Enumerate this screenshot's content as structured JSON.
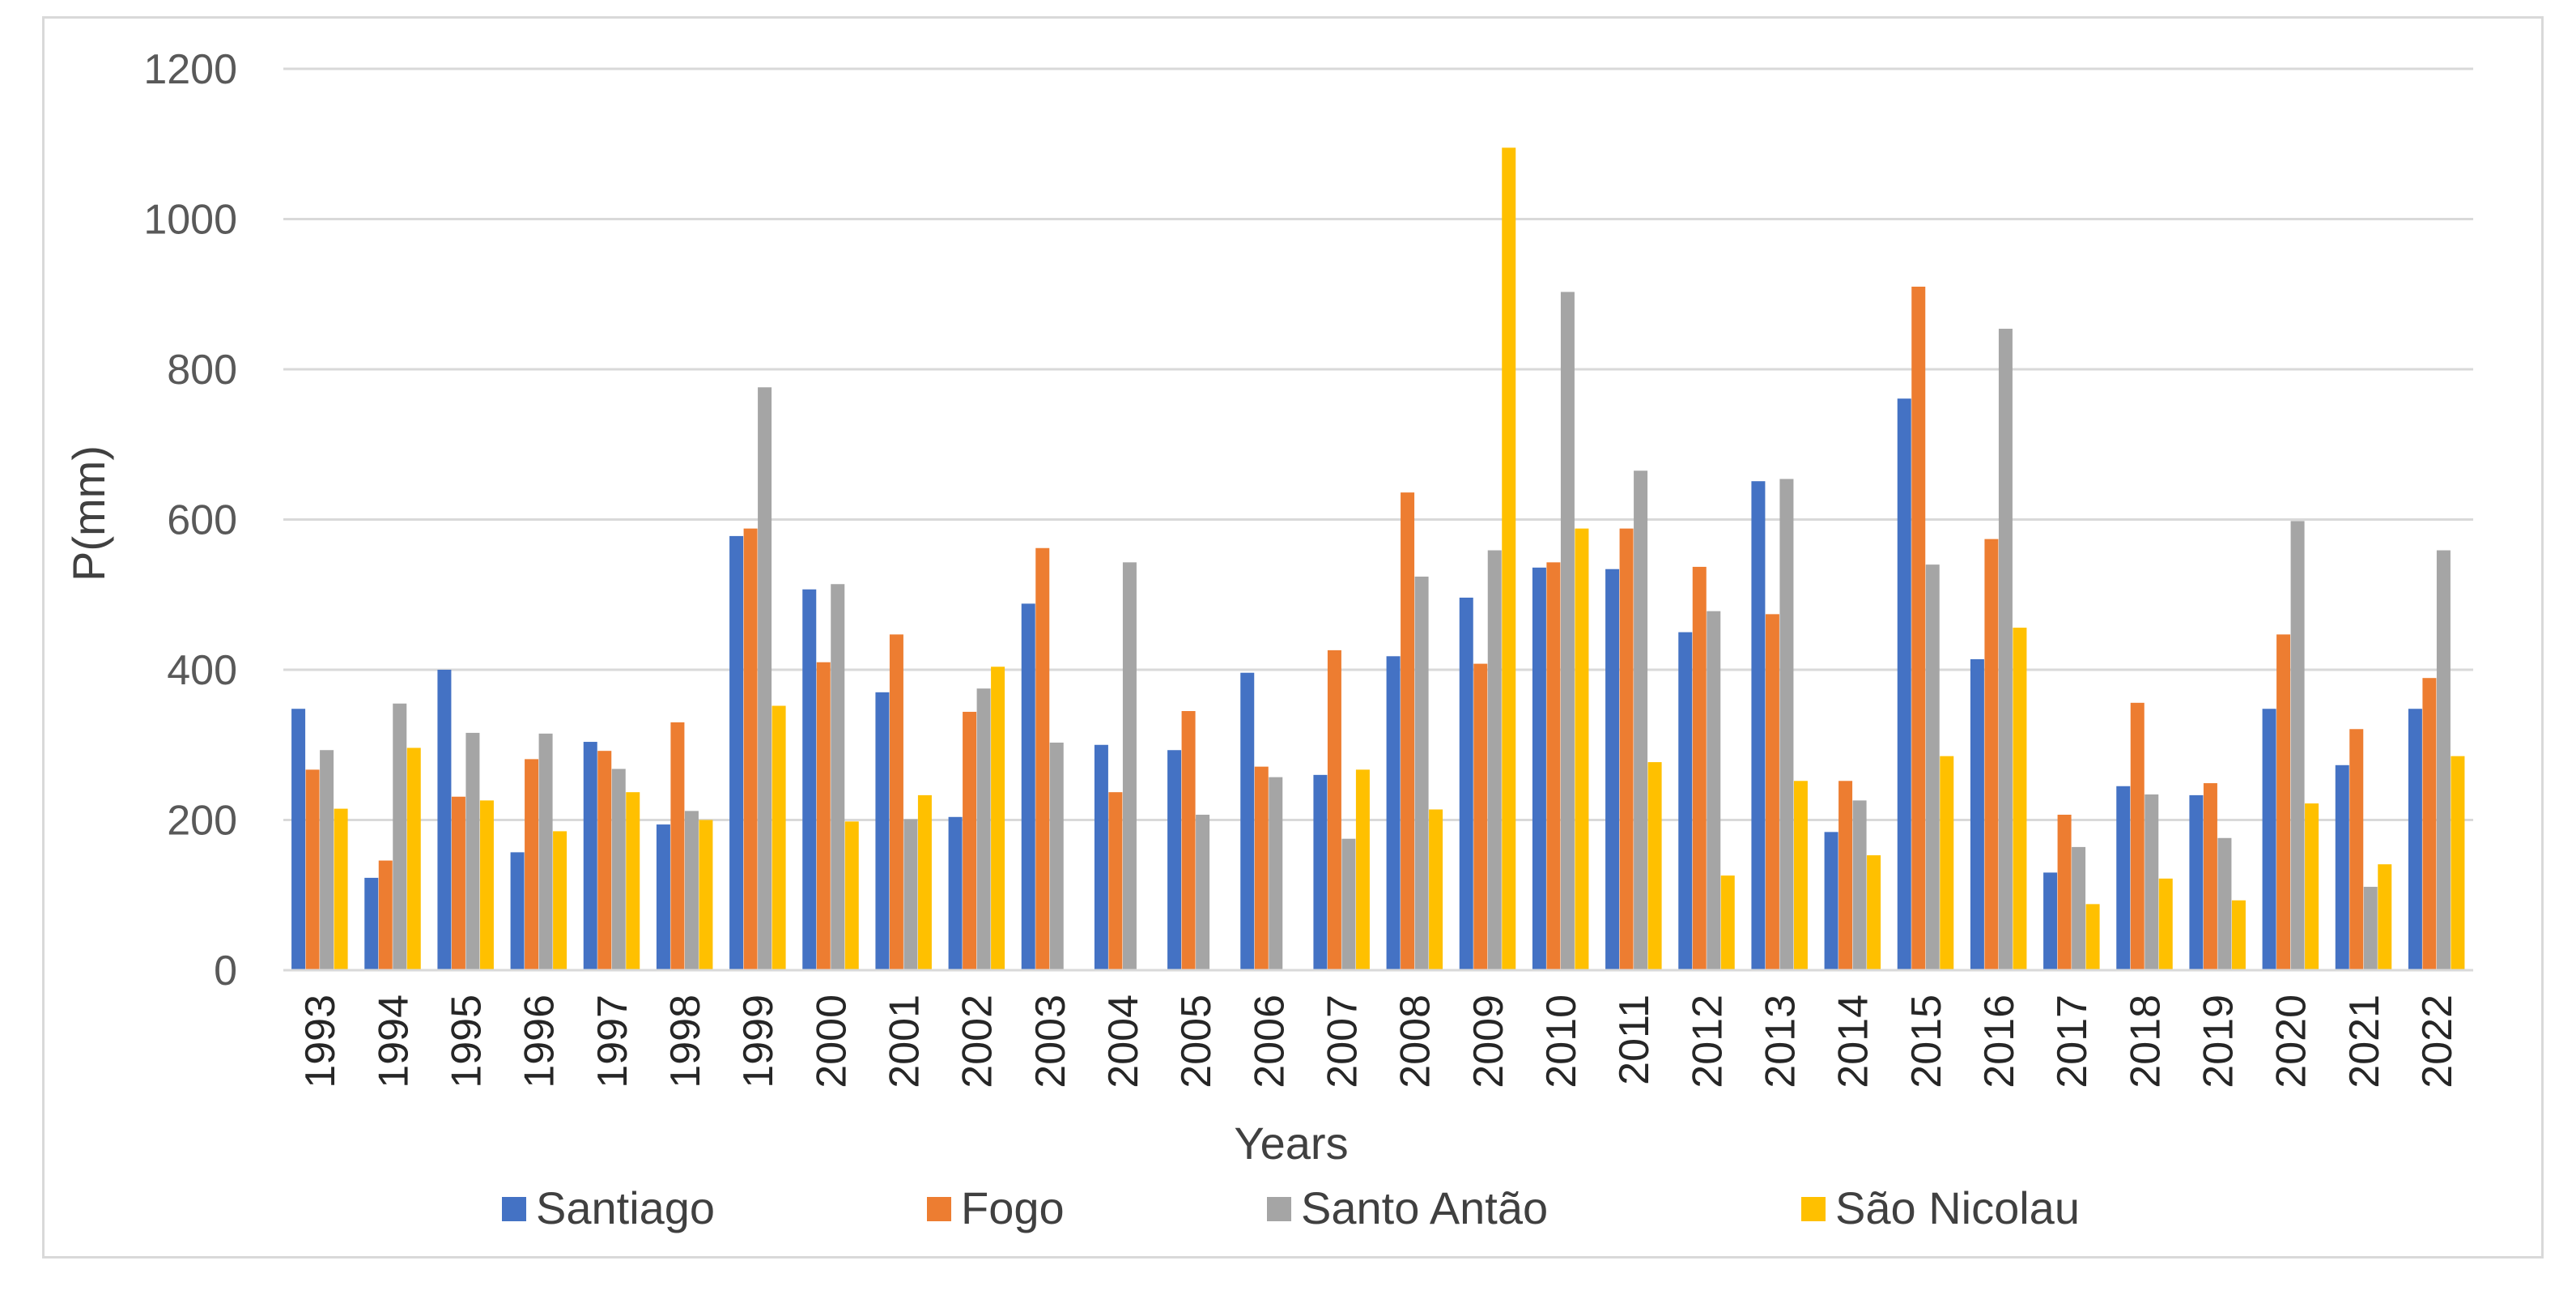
{
  "chart_data": {
    "type": "bar",
    "title": "",
    "xlabel": "Years",
    "ylabel": "P(mm)",
    "ylim": [
      0,
      1200
    ],
    "yticks": [
      0,
      200,
      400,
      600,
      800,
      1000,
      1200
    ],
    "grid": true,
    "legend_position": "bottom",
    "categories": [
      "1993",
      "1994",
      "1995",
      "1996",
      "1997",
      "1998",
      "1999",
      "2000",
      "2001",
      "2002",
      "2003",
      "2004",
      "2005",
      "2006",
      "2007",
      "2008",
      "2009",
      "2010",
      "2011",
      "2012",
      "2013",
      "2014",
      "2015",
      "2016",
      "2017",
      "2018",
      "2019",
      "2020",
      "2021",
      "2022"
    ],
    "series": [
      {
        "name": "Santiago",
        "color": "#4472C4",
        "values": [
          348,
          123,
          400,
          157,
          304,
          194,
          578,
          507,
          370,
          204,
          488,
          300,
          293,
          396,
          260,
          418,
          496,
          536,
          534,
          450,
          651,
          184,
          761,
          414,
          130,
          245,
          233,
          348,
          273,
          348
        ]
      },
      {
        "name": "Fogo",
        "color": "#ED7D31",
        "values": [
          267,
          146,
          231,
          281,
          292,
          330,
          588,
          410,
          447,
          344,
          562,
          237,
          345,
          271,
          426,
          636,
          408,
          543,
          588,
          537,
          474,
          252,
          910,
          574,
          207,
          356,
          249,
          447,
          321,
          389
        ]
      },
      {
        "name": "Santo Antão",
        "color": "#A5A5A5",
        "values": [
          293,
          355,
          316,
          315,
          268,
          212,
          776,
          514,
          201,
          375,
          303,
          543,
          207,
          257,
          175,
          524,
          559,
          903,
          665,
          478,
          654,
          226,
          540,
          854,
          164,
          234,
          176,
          598,
          111,
          559
        ]
      },
      {
        "name": "São Nicolau",
        "color": "#FFC000",
        "values": [
          215,
          296,
          226,
          185,
          237,
          200,
          352,
          198,
          233,
          404,
          0,
          0,
          0,
          0,
          267,
          214,
          1095,
          588,
          277,
          126,
          252,
          153,
          285,
          456,
          88,
          122,
          93,
          222,
          141,
          285
        ]
      }
    ]
  }
}
